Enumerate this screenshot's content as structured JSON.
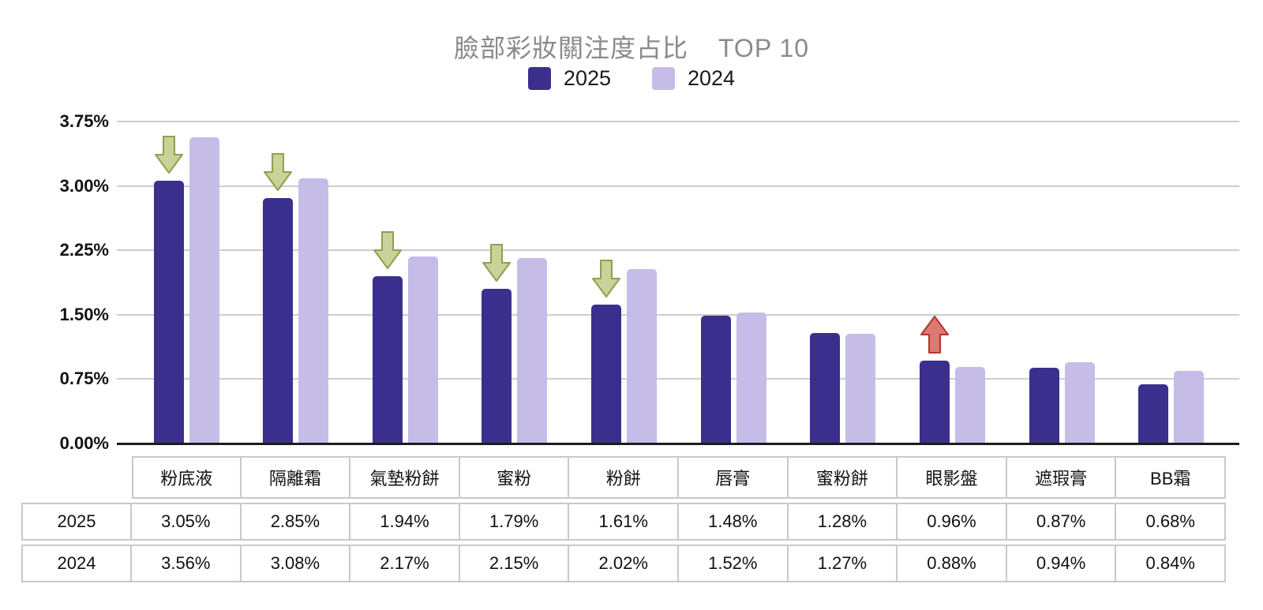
{
  "title": {
    "main": "臉部彩妝關注度占比",
    "suffix": "TOP 10"
  },
  "legend": {
    "items": [
      {
        "label": "2025",
        "color": "#3b2f8e"
      },
      {
        "label": "2024",
        "color": "#c5bde8"
      }
    ]
  },
  "colors": {
    "series_2025": "#3b2f8e",
    "series_2024": "#c5bde8",
    "gridline": "#cdcdcd",
    "axis": "#1c1c1c",
    "title_gray": "#8a8a8a",
    "arrow_down_fill": "#c9d298",
    "arrow_down_stroke": "#8fa050",
    "arrow_up_fill": "#db7a70",
    "arrow_up_stroke": "#b23530"
  },
  "chart_data": {
    "type": "bar",
    "title": "臉部彩妝關注度占比 TOP 10",
    "categories": [
      "粉底液",
      "隔離霜",
      "氣墊粉餅",
      "蜜粉",
      "粉餅",
      "唇膏",
      "蜜粉餅",
      "眼影盤",
      "遮瑕膏",
      "BB霜"
    ],
    "series": [
      {
        "name": "2025",
        "color": "#3b2f8e",
        "values": [
          3.05,
          2.85,
          1.94,
          1.79,
          1.61,
          1.48,
          1.28,
          0.96,
          0.87,
          0.68
        ]
      },
      {
        "name": "2024",
        "color": "#c5bde8",
        "values": [
          3.56,
          3.08,
          2.17,
          2.15,
          2.02,
          1.52,
          1.27,
          0.88,
          0.94,
          0.84
        ]
      }
    ],
    "ylim": [
      0,
      3.75
    ],
    "yticks": [
      "3.75%",
      "3.00%",
      "2.25%",
      "1.50%",
      "0.75%",
      "0.00%"
    ],
    "grid": true,
    "legend_position": "top",
    "annotations": [
      {
        "index": 0,
        "direction": "down"
      },
      {
        "index": 1,
        "direction": "down"
      },
      {
        "index": 2,
        "direction": "down"
      },
      {
        "index": 3,
        "direction": "down"
      },
      {
        "index": 4,
        "direction": "down"
      },
      {
        "index": 7,
        "direction": "up"
      }
    ]
  },
  "table": {
    "header": [
      "粉底液",
      "隔離霜",
      "氣墊粉餅",
      "蜜粉",
      "粉餅",
      "唇膏",
      "蜜粉餅",
      "眼影盤",
      "遮瑕膏",
      "BB霜"
    ],
    "rows": [
      {
        "label": "2025",
        "values": [
          "3.05%",
          "2.85%",
          "1.94%",
          "1.79%",
          "1.61%",
          "1.48%",
          "1.28%",
          "0.96%",
          "0.87%",
          "0.68%"
        ]
      },
      {
        "label": "2024",
        "values": [
          "3.56%",
          "3.08%",
          "2.17%",
          "2.15%",
          "2.02%",
          "1.52%",
          "1.27%",
          "0.88%",
          "0.94%",
          "0.84%"
        ]
      }
    ]
  }
}
